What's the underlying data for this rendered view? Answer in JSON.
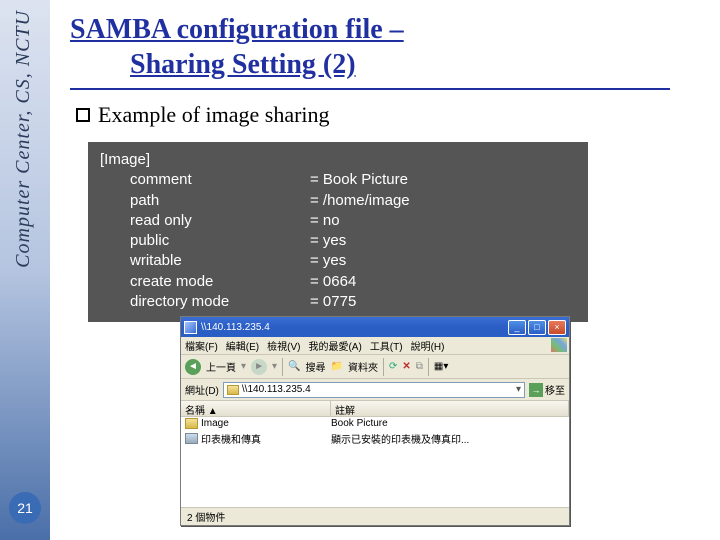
{
  "sidebar": {
    "label": "Computer Center, CS, NCTU",
    "page_number": "21",
    "gradient_start": "#dce3f0",
    "gradient_end": "#4a6fa8"
  },
  "title": {
    "line1": "SAMBA configuration file –",
    "line2": "Sharing Setting (2)",
    "color": "#2030a0",
    "fontsize_pt": 28
  },
  "bullet": {
    "text": "Example of image sharing",
    "fontsize_pt": 22
  },
  "config": {
    "background_color": "#555555",
    "text_color": "#ffffff",
    "font_family": "Verdana",
    "fontsize_pt": 15,
    "section": "[Image]",
    "rows": [
      {
        "key": "comment",
        "val": "= Book Picture"
      },
      {
        "key": "path",
        "val": "= /home/image"
      },
      {
        "key": "read only",
        "val": "= no"
      },
      {
        "key": "public",
        "val": "= yes"
      },
      {
        "key": "writable",
        "val": "= yes"
      },
      {
        "key": "create mode",
        "val": "= 0664"
      },
      {
        "key": "directory mode",
        "val": "= 0775"
      }
    ]
  },
  "explorer": {
    "title": "\\\\140.113.235.4",
    "menu": [
      "檔案(F)",
      "編輯(E)",
      "檢視(V)",
      "我的最愛(A)",
      "工具(T)",
      "說明(H)"
    ],
    "toolbar": {
      "back": "上一頁",
      "search": "搜尋",
      "folders": "資料夾"
    },
    "address_label": "網址(D)",
    "address_value": "\\\\140.113.235.4",
    "go_label": "移至",
    "columns": {
      "name": "名稱 ▲",
      "desc": "註解"
    },
    "items": [
      {
        "icon": "folder",
        "name": "Image",
        "desc": "Book Picture"
      },
      {
        "icon": "printer",
        "name": "印表機和傳真",
        "desc": "顯示已安裝的印表機及傳真印..."
      }
    ],
    "status": "2 個物件"
  }
}
